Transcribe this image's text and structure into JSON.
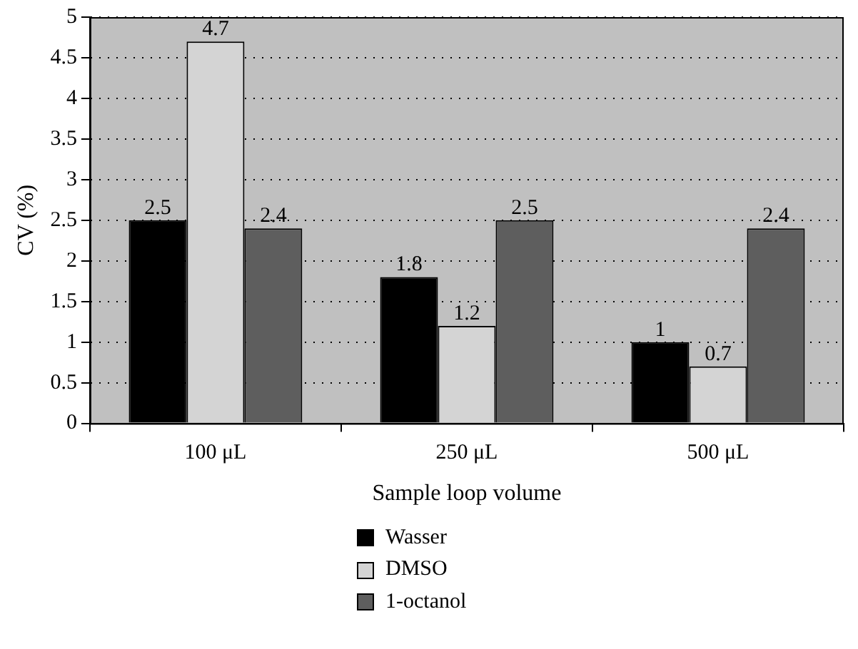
{
  "chart_data": {
    "type": "bar",
    "xlabel": "Sample loop volume",
    "ylabel": "CV (%)",
    "categories": [
      "100 μL",
      "250 μL",
      "500 μL"
    ],
    "series": [
      {
        "name": "Wasser",
        "color": "#000000",
        "values": [
          2.5,
          1.8,
          1
        ]
      },
      {
        "name": "DMSO",
        "color": "#d4d4d4",
        "values": [
          4.7,
          1.2,
          0.7
        ]
      },
      {
        "name": "1-octanol",
        "color": "#5e5e5e",
        "values": [
          2.4,
          2.5,
          2.4
        ]
      }
    ],
    "ylim": [
      0,
      5
    ],
    "yticks": [
      0,
      0.5,
      1,
      1.5,
      2,
      2.5,
      3,
      3.5,
      4,
      4.5,
      5
    ],
    "grid": "y",
    "legend": "bottom left",
    "data_labels": true
  }
}
